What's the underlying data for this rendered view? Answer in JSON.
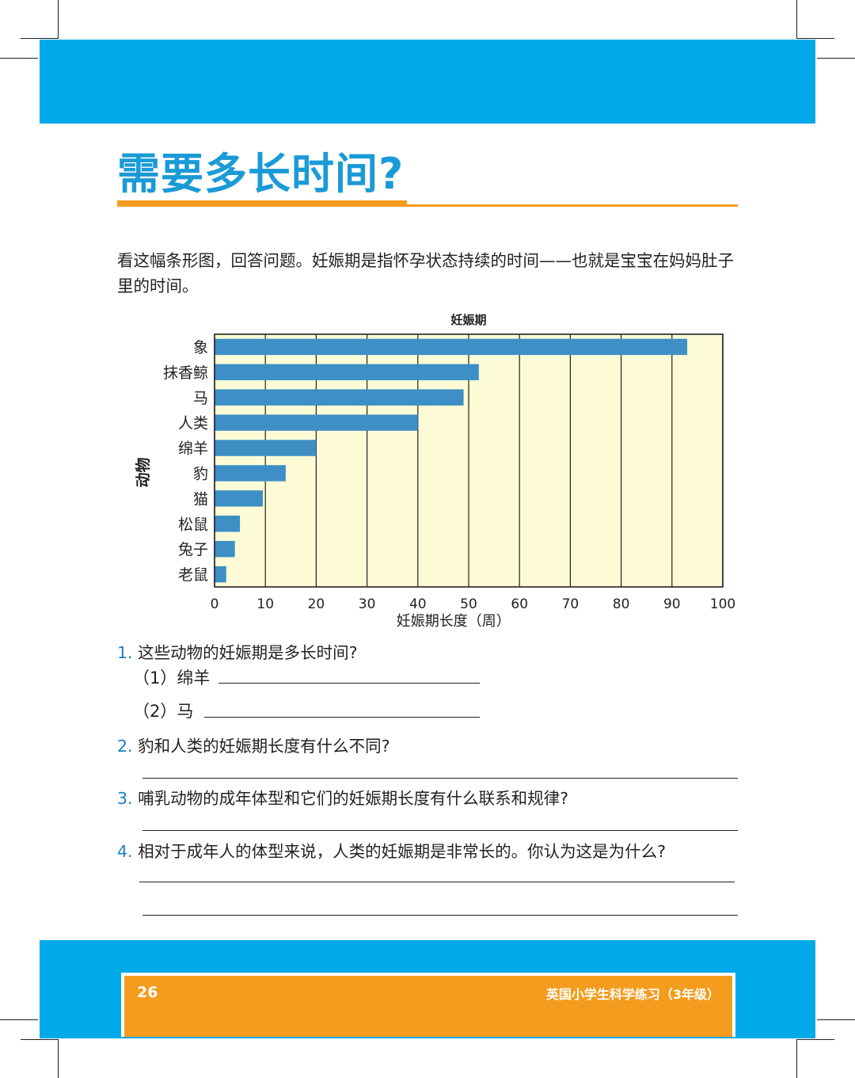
{
  "page": {
    "title": "需要多长时间?",
    "intro": "看这幅条形图，回答问题。妊娠期是指怀孕状态持续的时间——也就是宝宝在妈妈肚子里的时间。",
    "page_number": "26",
    "book_title": "英国小学生科学练习（3年级）",
    "colors": {
      "blue_band": "#00a9e8",
      "title_blue": "#1a9ad6",
      "orange": "#f39c1d",
      "bar": "#3d8fc6",
      "plot_bg": "#fdfbd6"
    }
  },
  "chart_data": {
    "type": "bar",
    "orientation": "horizontal",
    "title": "妊娠期",
    "xlabel": "妊娠期长度（周）",
    "ylabel": "动物",
    "categories": [
      "象",
      "抹香鲸",
      "马",
      "人类",
      "绵羊",
      "豹",
      "猫",
      "松鼠",
      "兔子",
      "老鼠"
    ],
    "values": [
      93,
      52,
      49,
      40,
      20,
      14,
      9.5,
      5,
      4,
      2.3
    ],
    "xlim": [
      0,
      100
    ],
    "xticks": [
      "0",
      "10",
      "20",
      "30",
      "40",
      "50",
      "60",
      "70",
      "80",
      "90",
      "100"
    ],
    "grid": "vertical"
  },
  "questions": [
    {
      "num": "1.",
      "text": "这些动物的妊娠期是多长时间?"
    },
    {
      "num": "2.",
      "text": "豹和人类的妊娠期长度有什么不同?"
    },
    {
      "num": "3.",
      "text": "哺乳动物的成年体型和它们的妊娠期长度有什么联系和规律?"
    },
    {
      "num": "4.",
      "text": "相对于成年人的体型来说，人类的妊娠期是非常长的。你认为这是为什么?"
    }
  ],
  "sub_questions": [
    {
      "label": "（1）绵羊"
    },
    {
      "label": "（2）马"
    }
  ]
}
